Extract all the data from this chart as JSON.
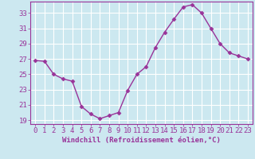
{
  "x": [
    0,
    1,
    2,
    3,
    4,
    5,
    6,
    7,
    8,
    9,
    10,
    11,
    12,
    13,
    14,
    15,
    16,
    17,
    18,
    19,
    20,
    21,
    22,
    23
  ],
  "y": [
    26.8,
    26.7,
    25.0,
    24.4,
    24.1,
    20.8,
    19.8,
    19.2,
    19.6,
    20.0,
    22.9,
    25.0,
    26.0,
    28.5,
    30.5,
    32.2,
    33.8,
    34.1,
    33.0,
    31.0,
    29.0,
    27.8,
    27.4,
    27.0
  ],
  "line_color": "#993399",
  "marker": "D",
  "marker_size": 2.5,
  "bg_color": "#cce8f0",
  "grid_color": "#ffffff",
  "xlabel": "Windchill (Refroidissement éolien,°C)",
  "ylim": [
    18.5,
    34.5
  ],
  "yticks": [
    19,
    21,
    23,
    25,
    27,
    29,
    31,
    33
  ],
  "xticks": [
    0,
    1,
    2,
    3,
    4,
    5,
    6,
    7,
    8,
    9,
    10,
    11,
    12,
    13,
    14,
    15,
    16,
    17,
    18,
    19,
    20,
    21,
    22,
    23
  ],
  "xlabel_fontsize": 6.5,
  "tick_fontsize": 6.5,
  "tick_color": "#993399",
  "axis_color": "#993399",
  "lw": 1.0
}
